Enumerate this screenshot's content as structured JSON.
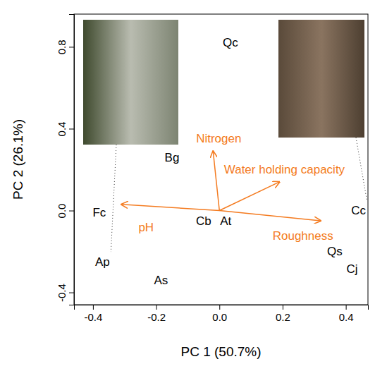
{
  "chart_data": {
    "type": "scatter",
    "xlabel": "PC 1 (50.7%)",
    "ylabel": "PC 2 (26.1%)",
    "xlim": [
      -0.46,
      0.47
    ],
    "ylim": [
      -0.46,
      0.96
    ],
    "xticks": [
      -0.4,
      -0.2,
      {
        "value": 0,
        "label": "0.0"
      },
      0.2,
      0.4
    ],
    "yticks": [
      -0.4,
      {
        "value": 0,
        "label": "0.0"
      },
      0.4,
      0.8
    ],
    "points": {
      "color": "#000000",
      "labels": [
        "Qc",
        "Bg",
        "Fc",
        "Ap",
        "As",
        "Cb",
        "At",
        "Cc",
        "Qs",
        "Cj"
      ],
      "x": [
        0.035,
        -0.15,
        -0.38,
        -0.37,
        -0.185,
        -0.05,
        0.02,
        0.44,
        0.365,
        0.42
      ],
      "y": [
        0.82,
        0.26,
        -0.01,
        -0.25,
        -0.34,
        -0.05,
        -0.05,
        0.0,
        -0.2,
        -0.285
      ]
    },
    "loadings": {
      "color": "#f47b20",
      "names": [
        "pH",
        "Nitrogen",
        "Water holding capacity",
        "Roughness"
      ],
      "x": [
        -0.31,
        -0.02,
        0.19,
        0.32
      ],
      "y": [
        0.03,
        0.29,
        0.14,
        -0.05
      ]
    }
  }
}
